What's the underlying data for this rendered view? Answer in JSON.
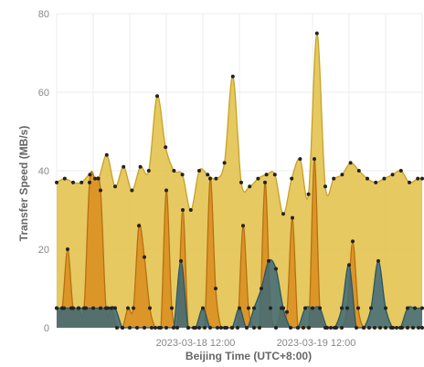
{
  "chart_data": {
    "type": "area",
    "xlabel": "Beijing Time (UTC+8:00)",
    "ylabel": "Transfer Speed (MB/s)",
    "ylim": [
      0,
      80
    ],
    "xlim": [
      0,
      100
    ],
    "yticks": [
      0,
      20,
      40,
      60,
      80
    ],
    "xticks": [
      {
        "x": 38,
        "label": "2023-03-18 12:00"
      },
      {
        "x": 71,
        "label": "2023-03-19 12:00"
      }
    ],
    "grid": true,
    "legend": "none",
    "series": [
      {
        "color": "#e2bf45",
        "stroke": "#c9a225",
        "x": [
          0,
          2.2,
          4.5,
          6.8,
          9.1,
          11.4,
          13.7,
          16,
          18.3,
          20.6,
          22.9,
          25.2,
          27.5,
          29.8,
          32.1,
          34.4,
          36.7,
          39,
          41.3,
          43.6,
          45.9,
          48.2,
          50.5,
          52.8,
          55.1,
          57.4,
          59.7,
          62,
          64.3,
          66.6,
          68.9,
          71.2,
          73.5,
          75.8,
          78.1,
          80.4,
          82.7,
          85,
          87.3,
          89.6,
          91.9,
          94.2,
          96.5,
          98.8,
          100
        ],
        "values": [
          37,
          38,
          37,
          37,
          39,
          38,
          44,
          36,
          41,
          35,
          41,
          40,
          59,
          46,
          40,
          39,
          30,
          40,
          39,
          38,
          42,
          64,
          37,
          36,
          38,
          39,
          39,
          29,
          38,
          43,
          34,
          75,
          36,
          38,
          39,
          42,
          40,
          38,
          37,
          38,
          39,
          40,
          37,
          38,
          38
        ]
      },
      {
        "color": "#d98d1e",
        "stroke": "#b86f10",
        "x": [
          0,
          1.5,
          3,
          4.5,
          6,
          7.5,
          9,
          10.5,
          12,
          13.5,
          15,
          16.5,
          18,
          19.5,
          21,
          22.5,
          24,
          25.5,
          27,
          28.5,
          30,
          31.5,
          33,
          34.5,
          36,
          37.5,
          39,
          40.5,
          42,
          43.5,
          45,
          46.5,
          48,
          49.5,
          51,
          52.5,
          54,
          55.5,
          57,
          58.5,
          60,
          61.5,
          63,
          64.5,
          66,
          67.5,
          69,
          70.5,
          72,
          73.5,
          75,
          76.5,
          78,
          79.5,
          81,
          82.5,
          84,
          85.5,
          87,
          88.5,
          90,
          91.5,
          93,
          94.5,
          96,
          97.5,
          99,
          100
        ],
        "values": [
          5,
          5,
          20,
          5,
          5,
          5,
          37,
          38,
          35,
          5,
          5,
          0,
          0,
          5,
          5,
          26,
          18,
          5,
          0,
          0,
          35,
          5,
          0,
          30,
          0,
          0,
          0,
          0,
          38,
          10,
          0,
          0,
          0,
          0,
          26,
          5,
          0,
          0,
          37,
          5,
          0,
          5,
          4,
          28,
          0,
          0,
          0,
          43,
          5,
          0,
          0,
          0,
          0,
          5,
          22,
          5,
          0,
          0,
          0,
          0,
          0,
          0,
          0,
          0,
          0,
          0,
          0,
          0
        ]
      },
      {
        "color": "#3d6a78",
        "stroke": "#2c5664",
        "x": [
          0,
          2,
          4,
          6,
          8,
          10,
          12,
          14,
          16,
          18,
          20,
          22,
          24,
          26,
          28,
          30,
          32,
          34,
          36,
          38,
          40,
          42,
          44,
          46,
          48,
          50,
          52,
          54,
          56,
          58,
          60,
          62,
          64,
          66,
          68,
          70,
          72,
          74,
          76,
          78,
          80,
          82,
          84,
          86,
          88,
          90,
          92,
          94,
          96,
          98,
          100
        ],
        "values": [
          5,
          5,
          5,
          5,
          5,
          5,
          5,
          5,
          5,
          0,
          0,
          0,
          0,
          0,
          0,
          0,
          0,
          17,
          0,
          0,
          5,
          0,
          0,
          0,
          0,
          5,
          0,
          5,
          10,
          17,
          15,
          5,
          0,
          0,
          5,
          5,
          5,
          0,
          0,
          5,
          16,
          0,
          0,
          5,
          17,
          5,
          0,
          0,
          5,
          5,
          5
        ]
      }
    ]
  }
}
